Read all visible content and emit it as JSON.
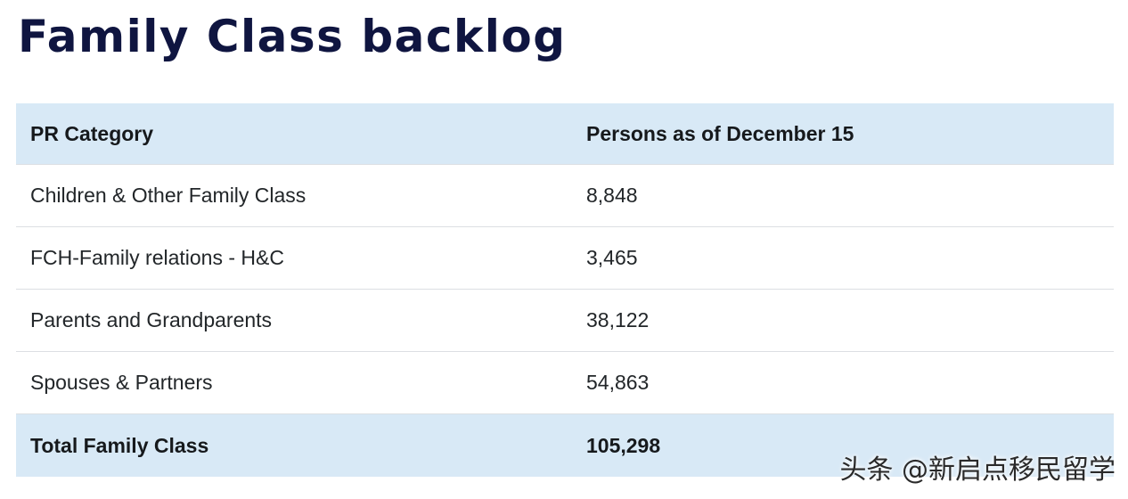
{
  "title": "Family Class backlog",
  "table": {
    "headers": [
      "PR Category",
      "Persons as of December 15"
    ],
    "rows": [
      [
        "Children & Other Family Class",
        "8,848"
      ],
      [
        "FCH-Family relations - H&C",
        "3,465"
      ],
      [
        "Parents and Grandparents",
        "38,122"
      ],
      [
        "Spouses & Partners",
        "54,863"
      ]
    ],
    "total": [
      "Total Family Class",
      "105,298"
    ]
  },
  "watermark": "头条 @新启点移民留学",
  "colors": {
    "title": "#0f1540",
    "header_background": "#d8e9f6",
    "row_divider": "#dcdfe3"
  }
}
